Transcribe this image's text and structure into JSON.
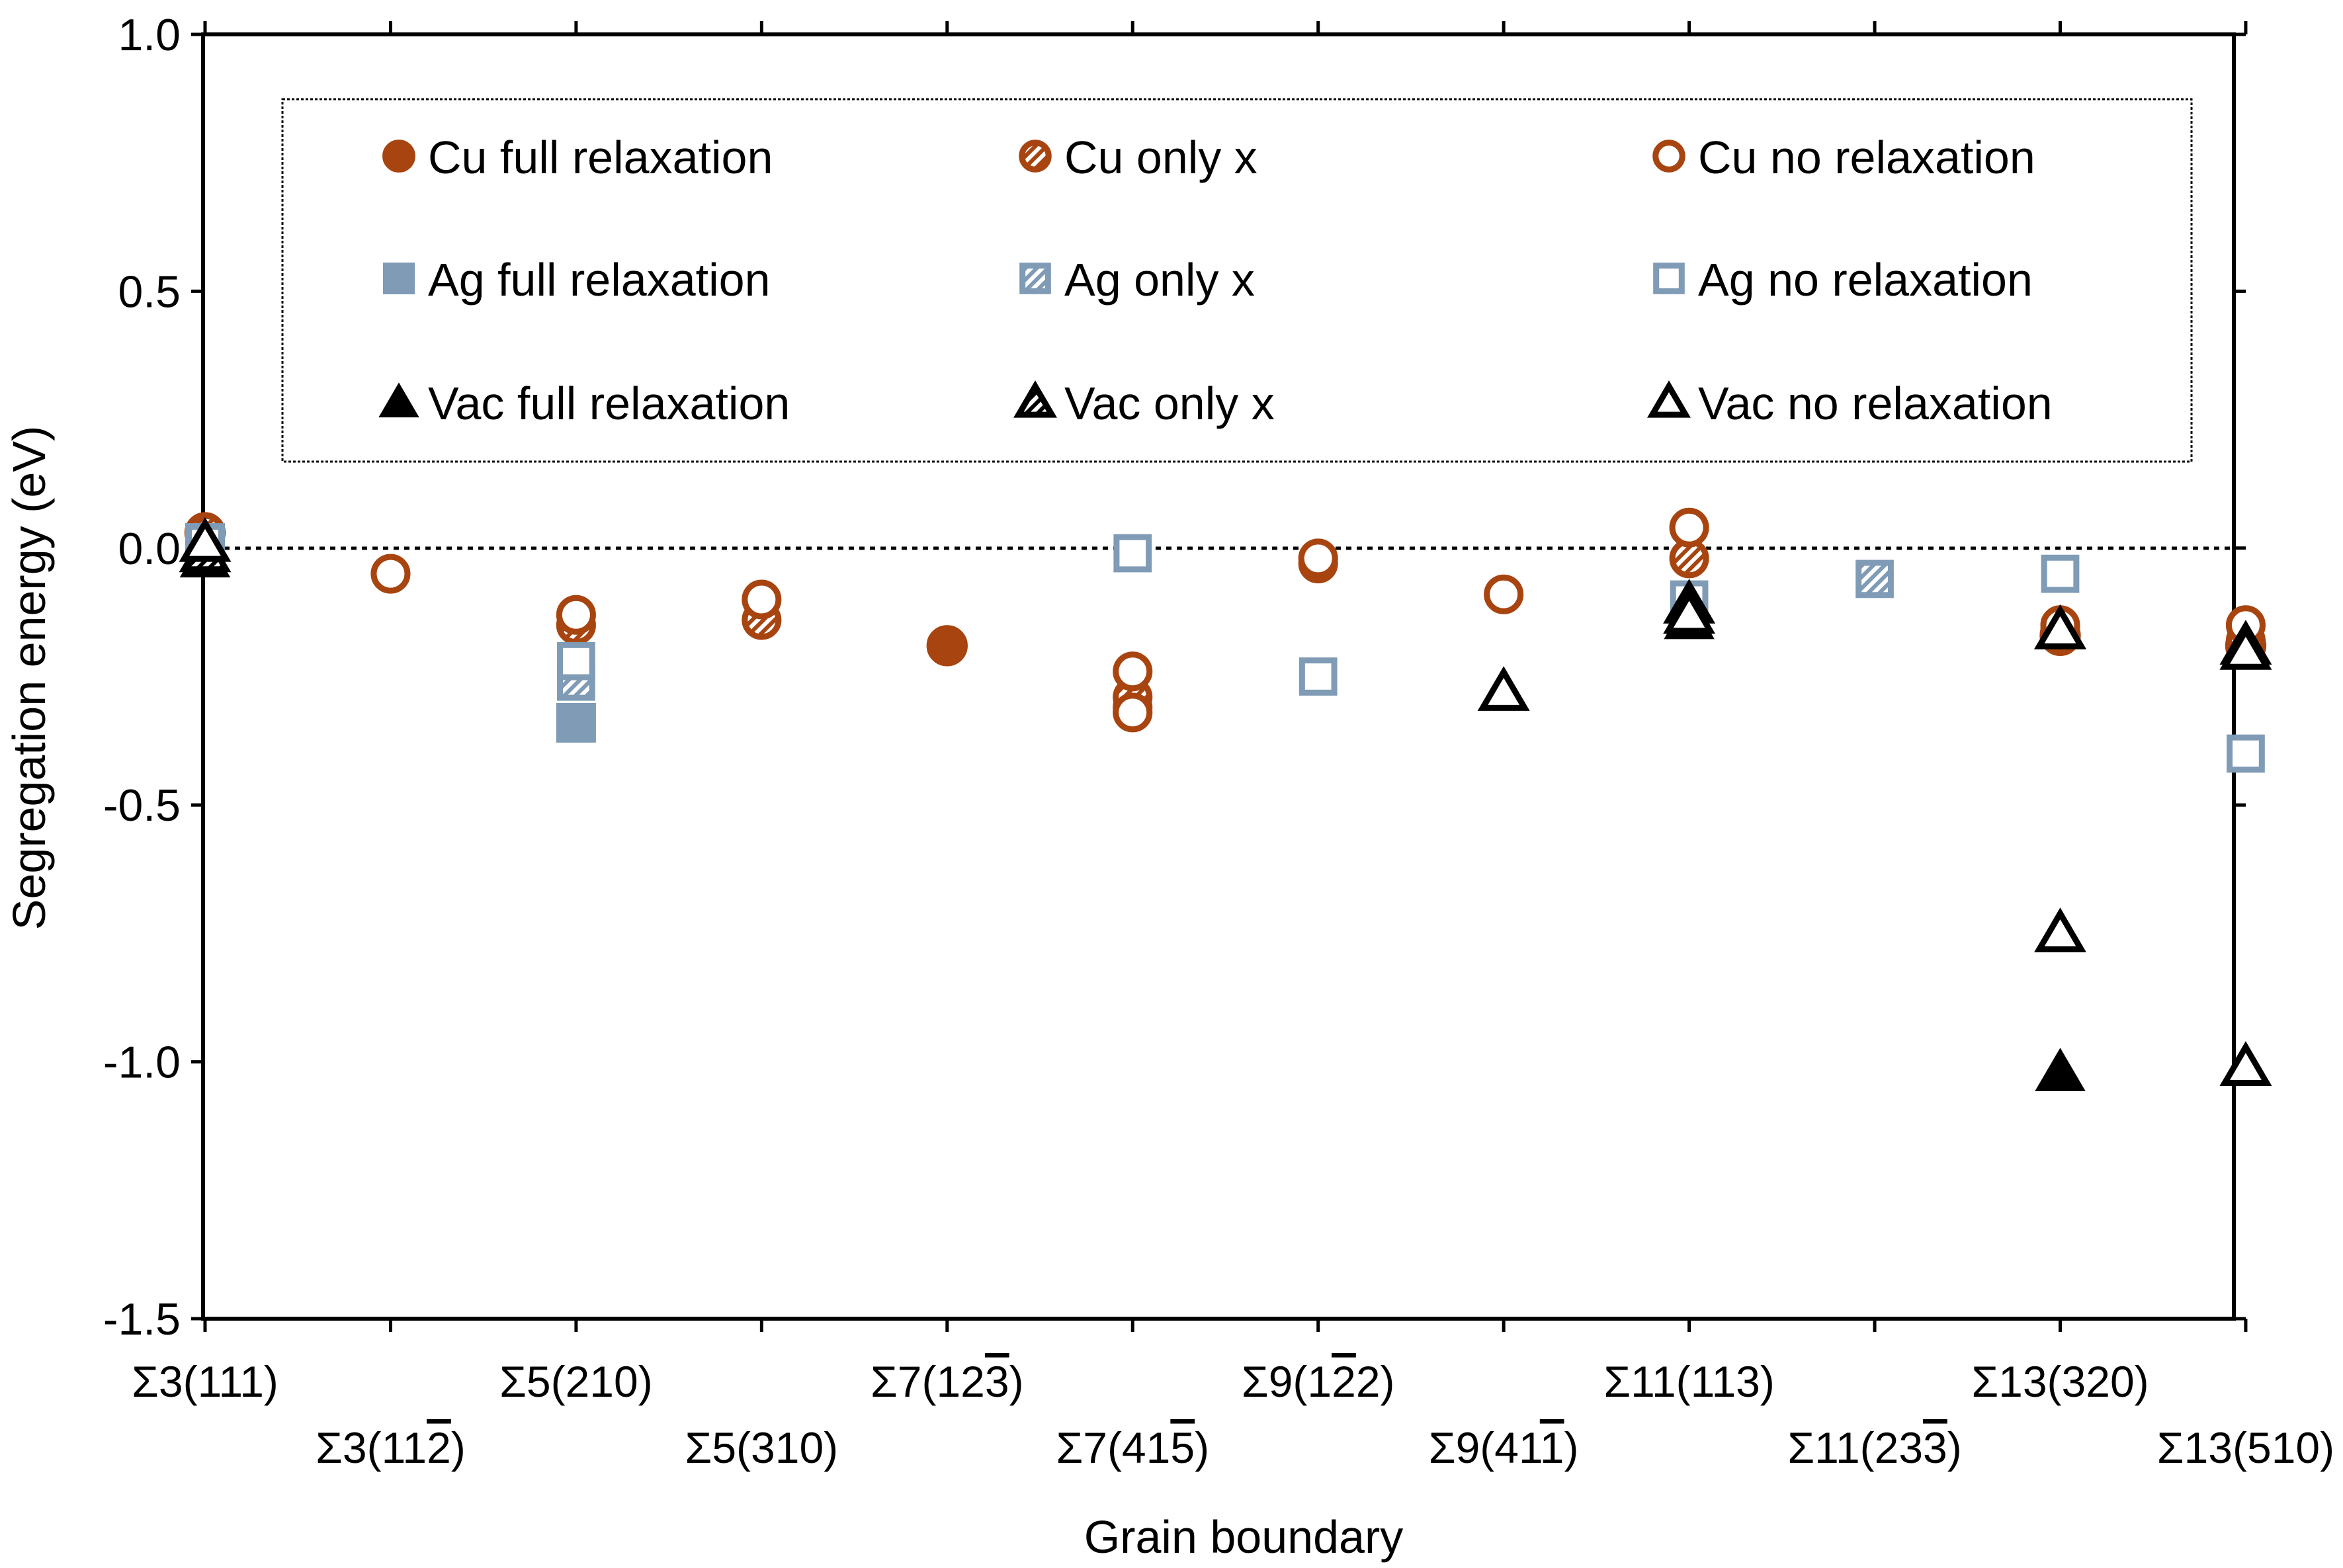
{
  "chart_data": {
    "type": "scatter",
    "title": "",
    "xlabel": "Grain boundary",
    "ylabel": "Segregation energy (eV)",
    "ylim": [
      -1.5,
      1.0
    ],
    "yticks": [
      1.0,
      0.5,
      0.0,
      -0.5,
      -1.0,
      -1.5
    ],
    "ytick_labels": [
      "1.0",
      "0.5",
      "0.0",
      "-0.5",
      "-1.0",
      "-1.5"
    ],
    "reference_line": 0.0,
    "legend_placement": "top",
    "categories": [
      {
        "label": "Σ3(111)",
        "html": "Σ3(111)"
      },
      {
        "label": "Σ3(11-2)",
        "html": "Σ3(11<tspan text-decoration=\"overline\">2</tspan>)"
      },
      {
        "label": "Σ5(210)",
        "html": "Σ5(210)"
      },
      {
        "label": "Σ5(310)",
        "html": "Σ5(310)"
      },
      {
        "label": "Σ7(12-3)",
        "html": "Σ7(12<tspan text-decoration=\"overline\">3</tspan>)"
      },
      {
        "label": "Σ7(41-5)",
        "html": "Σ7(41<tspan text-decoration=\"overline\">5</tspan>)"
      },
      {
        "label": "Σ9(1-22)",
        "html": "Σ9(1<tspan text-decoration=\"overline\">2</tspan>2)"
      },
      {
        "label": "Σ9(41-1)",
        "html": "Σ9(41<tspan text-decoration=\"overline\">1</tspan>)"
      },
      {
        "label": "Σ11(113)",
        "html": "Σ11(113)"
      },
      {
        "label": "Σ11(23-3)",
        "html": "Σ11(23<tspan text-decoration=\"overline\">3</tspan>)"
      },
      {
        "label": "Σ13(320)",
        "html": "Σ13(320)"
      },
      {
        "label": "Σ13(510)",
        "html": "Σ13(510)"
      }
    ],
    "series": [
      {
        "name": "Cu full relaxation",
        "marker": "circle",
        "fill": "solid",
        "color": "#a8440f",
        "points": [
          [
            0,
            0.03
          ],
          [
            4,
            -0.19
          ],
          [
            10,
            -0.17
          ],
          [
            11,
            -0.19
          ]
        ]
      },
      {
        "name": "Cu only x",
        "marker": "circle",
        "fill": "hatched",
        "color": "#a8440f",
        "points": [
          [
            0,
            0.03
          ],
          [
            2,
            -0.15
          ],
          [
            3,
            -0.14
          ],
          [
            5,
            -0.31
          ],
          [
            5,
            -0.29
          ],
          [
            6,
            -0.03
          ],
          [
            8,
            -0.02
          ],
          [
            10,
            -0.16
          ],
          [
            11,
            -0.18
          ]
        ]
      },
      {
        "name": "Cu no relaxation",
        "marker": "circle",
        "fill": "open",
        "color": "#a8440f",
        "points": [
          [
            1,
            -0.05
          ],
          [
            2,
            -0.13
          ],
          [
            3,
            -0.1
          ],
          [
            5,
            -0.24
          ],
          [
            5,
            -0.32
          ],
          [
            6,
            -0.02
          ],
          [
            7,
            -0.09
          ],
          [
            8,
            0.04
          ],
          [
            10,
            -0.15
          ],
          [
            11,
            -0.15
          ]
        ]
      },
      {
        "name": "Ag full relaxation",
        "marker": "square",
        "fill": "solid",
        "color": "#7f9bb5",
        "points": [
          [
            0,
            0.01
          ],
          [
            2,
            -0.34
          ]
        ]
      },
      {
        "name": "Ag only x",
        "marker": "square",
        "fill": "hatched",
        "color": "#7f9bb5",
        "points": [
          [
            0,
            0.01
          ],
          [
            2,
            -0.26
          ],
          [
            9,
            -0.06
          ]
        ]
      },
      {
        "name": "Ag no relaxation",
        "marker": "square",
        "fill": "open",
        "color": "#7f9bb5",
        "points": [
          [
            0,
            0.01
          ],
          [
            2,
            -0.22
          ],
          [
            5,
            -0.01
          ],
          [
            6,
            -0.25
          ],
          [
            8,
            -0.1
          ],
          [
            10,
            -0.05
          ],
          [
            11,
            -0.4
          ]
        ]
      },
      {
        "name": "Vac full relaxation",
        "marker": "triangle",
        "fill": "solid",
        "color": "#000000",
        "points": [
          [
            0,
            -0.02
          ],
          [
            8,
            -0.14
          ],
          [
            10,
            -1.02
          ]
        ]
      },
      {
        "name": "Vac only x",
        "marker": "triangle",
        "fill": "hatched",
        "color": "#000000",
        "points": [
          [
            0,
            -0.01
          ],
          [
            8,
            -0.11
          ],
          [
            10,
            -0.16
          ],
          [
            11,
            -0.19
          ]
        ]
      },
      {
        "name": "Vac no relaxation",
        "marker": "triangle",
        "fill": "open",
        "color": "#000000",
        "points": [
          [
            0,
            0.01
          ],
          [
            7,
            -0.28
          ],
          [
            8,
            -0.13
          ],
          [
            10,
            -0.75
          ],
          [
            10,
            -0.16
          ],
          [
            11,
            -1.01
          ],
          [
            11,
            -0.2
          ]
        ]
      }
    ]
  }
}
